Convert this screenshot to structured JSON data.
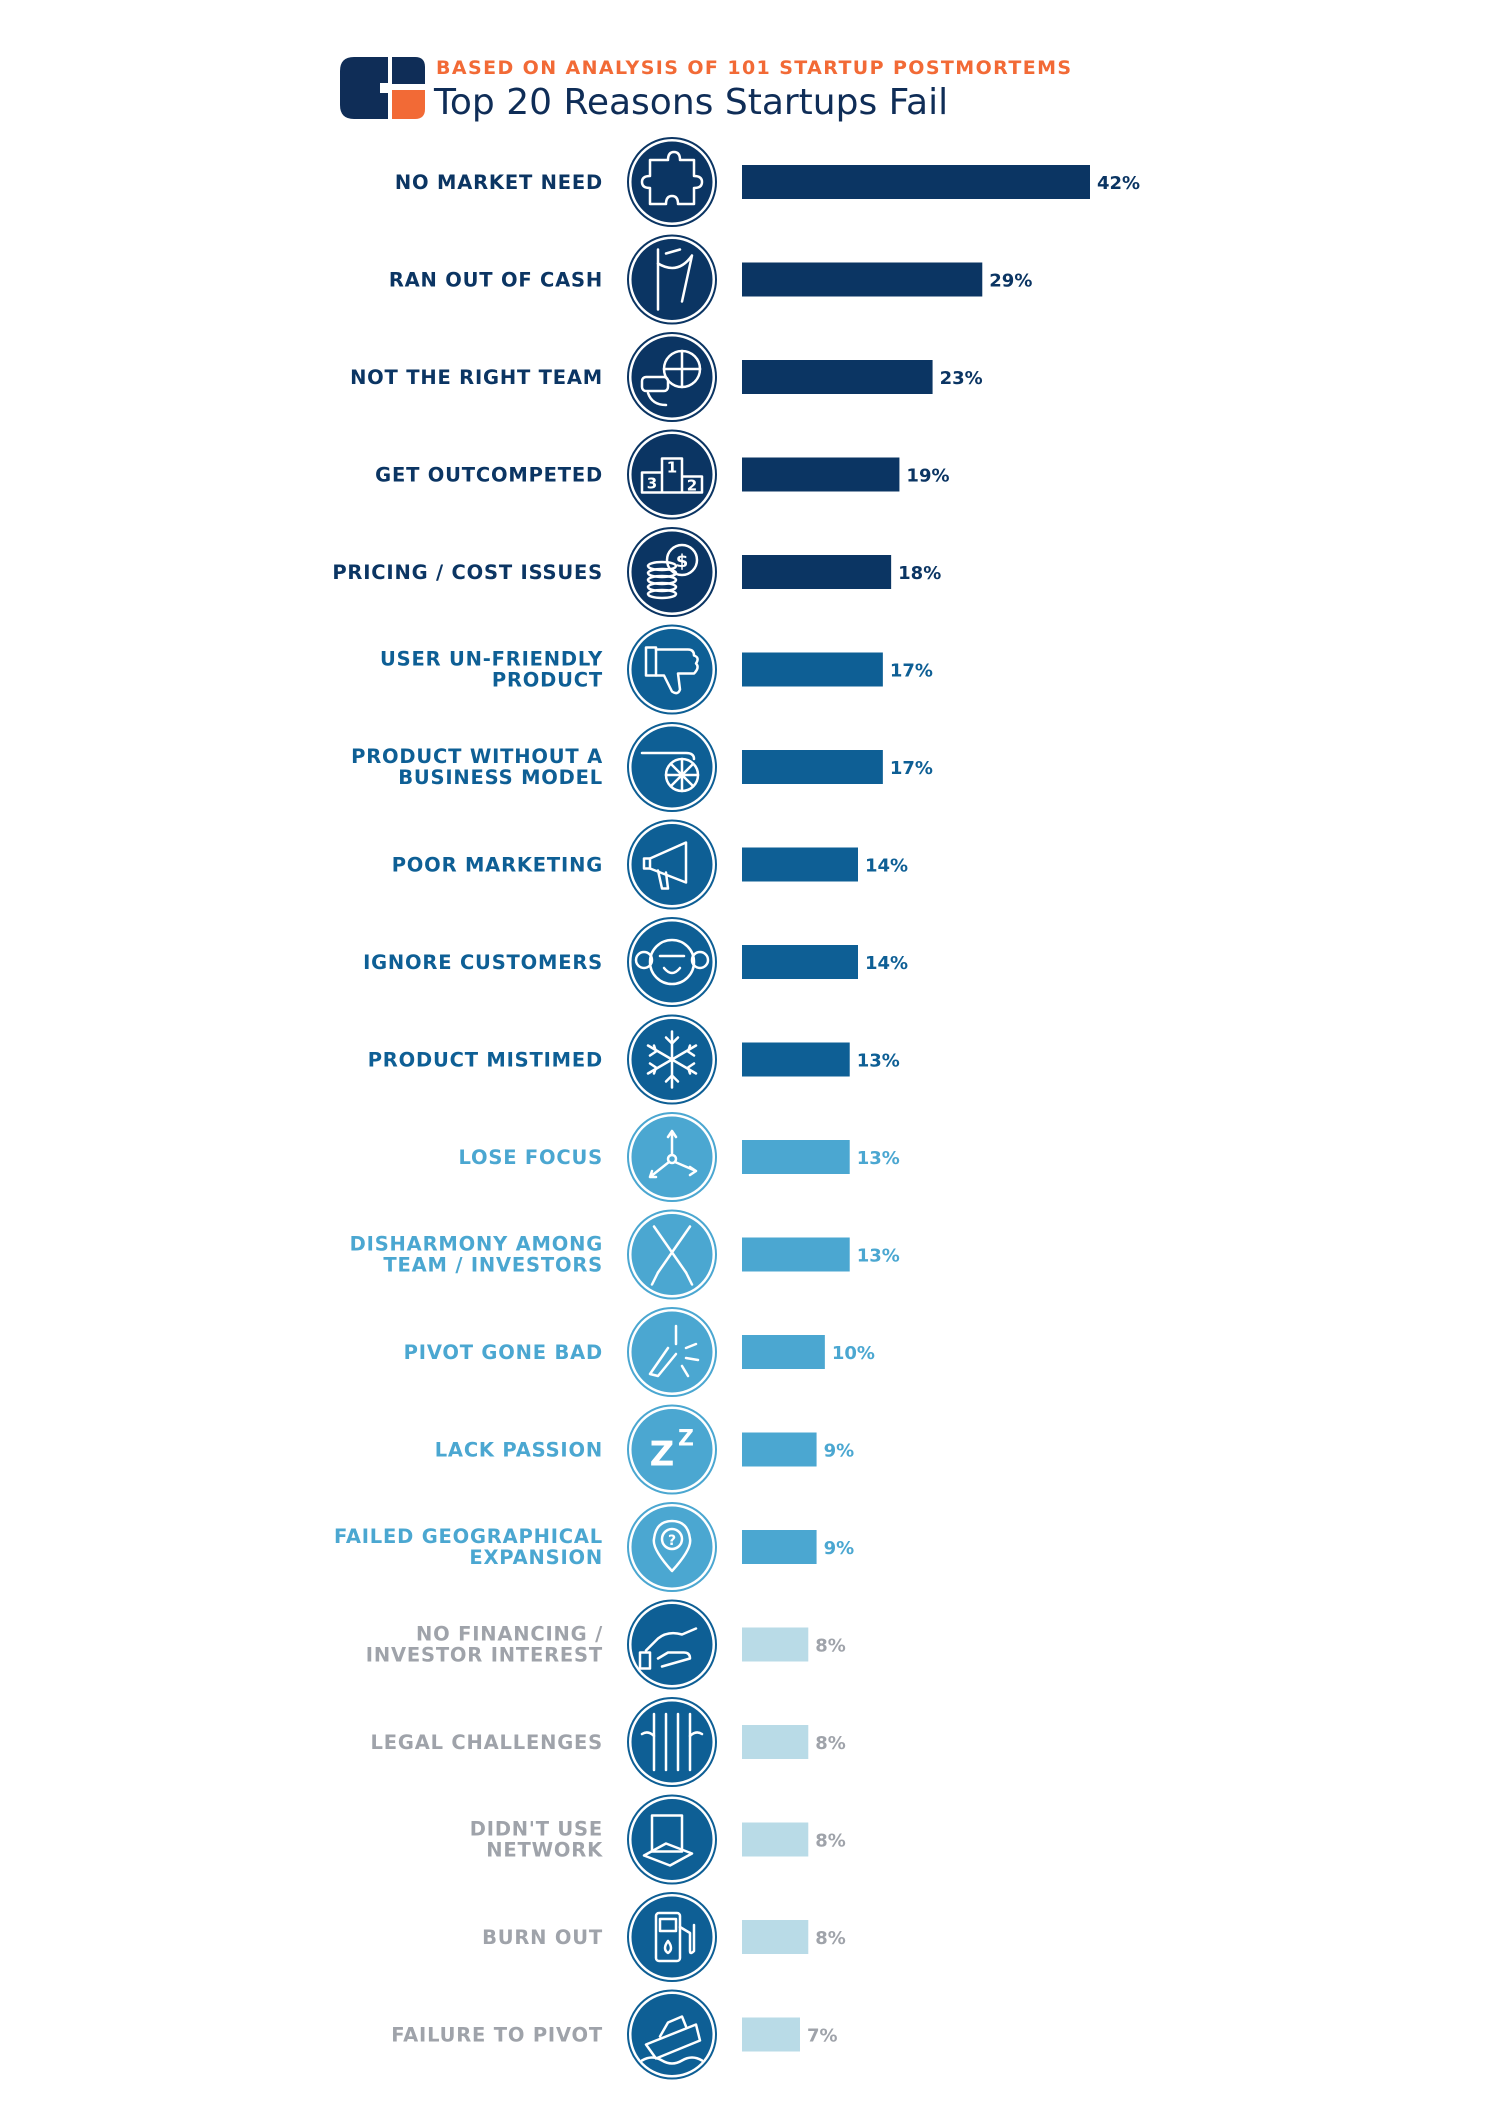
{
  "header": {
    "subtitle": "BASED ON ANALYSIS OF 101 STARTUP POSTMORTEMS",
    "title": "Top 20 Reasons Startups Fail"
  },
  "colors": {
    "tier1": "#0b3563",
    "tier2": "#0e5f95",
    "tier3": "#4ba7d1",
    "tier4": "#b9dbe7",
    "label_tier4": "#9fa3aa",
    "accent_orange": "#f26a36",
    "logo_navy": "#0f2d57"
  },
  "chart_data": {
    "type": "bar",
    "orientation": "horizontal",
    "categories": [
      "NO MARKET NEED",
      "RAN OUT OF CASH",
      "NOT THE RIGHT TEAM",
      "GET OUTCOMPETED",
      "PRICING / COST ISSUES",
      "USER UN-FRIENDLY PRODUCT",
      "PRODUCT WITHOUT A BUSINESS MODEL",
      "POOR MARKETING",
      "IGNORE CUSTOMERS",
      "PRODUCT MISTIMED",
      "LOSE FOCUS",
      "DISHARMONY AMONG TEAM / INVESTORS",
      "PIVOT GONE BAD",
      "LACK PASSION",
      "FAILED GEOGRAPHICAL EXPANSION",
      "NO FINANCING / INVESTOR INTEREST",
      "LEGAL CHALLENGES",
      "DIDN'T USE NETWORK",
      "BURN OUT",
      "FAILURE TO PIVOT"
    ],
    "label_lines": [
      [
        "NO MARKET NEED"
      ],
      [
        "RAN OUT OF CASH"
      ],
      [
        "NOT THE RIGHT TEAM"
      ],
      [
        "GET OUTCOMPETED"
      ],
      [
        "PRICING / COST ISSUES"
      ],
      [
        "USER UN-FRIENDLY",
        "PRODUCT"
      ],
      [
        "PRODUCT WITHOUT A",
        "BUSINESS MODEL"
      ],
      [
        "POOR MARKETING"
      ],
      [
        "IGNORE CUSTOMERS"
      ],
      [
        "PRODUCT MISTIMED"
      ],
      [
        "LOSE FOCUS"
      ],
      [
        "DISHARMONY AMONG",
        "TEAM / INVESTORS"
      ],
      [
        "PIVOT GONE BAD"
      ],
      [
        "LACK PASSION"
      ],
      [
        "FAILED GEOGRAPHICAL",
        "EXPANSION"
      ],
      [
        "NO FINANCING /",
        "INVESTOR INTEREST"
      ],
      [
        "LEGAL CHALLENGES"
      ],
      [
        "DIDN'T USE",
        "NETWORK"
      ],
      [
        "BURN OUT"
      ],
      [
        "FAILURE TO PIVOT"
      ]
    ],
    "values": [
      42,
      29,
      23,
      19,
      18,
      17,
      17,
      14,
      14,
      13,
      13,
      13,
      10,
      9,
      9,
      8,
      8,
      8,
      8,
      7
    ],
    "value_labels": [
      "42%",
      "29%",
      "23%",
      "19%",
      "18%",
      "17%",
      "17%",
      "14%",
      "14%",
      "13%",
      "13%",
      "13%",
      "10%",
      "9%",
      "9%",
      "8%",
      "8%",
      "8%",
      "8%",
      "7%"
    ],
    "tiers": [
      1,
      1,
      1,
      1,
      1,
      2,
      2,
      2,
      2,
      2,
      3,
      3,
      3,
      3,
      3,
      4,
      4,
      4,
      4,
      4
    ],
    "icons": [
      "puzzle-icon",
      "empty-pocket-icon",
      "vr-headset-globe-icon",
      "podium-icon",
      "coin-stack-icon",
      "thumbs-down-icon",
      "cart-wheel-icon",
      "megaphone-icon",
      "monkey-face-icon",
      "snowflake-icon",
      "scatter-arrows-icon",
      "crossed-oars-icon",
      "crash-broken-icon",
      "sleep-zz-icon",
      "map-pin-question-icon",
      "hand-icon",
      "jail-bars-icon",
      "network-box-icon",
      "fuel-pump-icon",
      "sinking-ship-icon"
    ],
    "podium_labels": [
      "3",
      "1",
      "2"
    ],
    "sleep_glyphs": [
      "Z",
      "Z"
    ],
    "dollar_sign": "$",
    "question_mark": "?"
  }
}
